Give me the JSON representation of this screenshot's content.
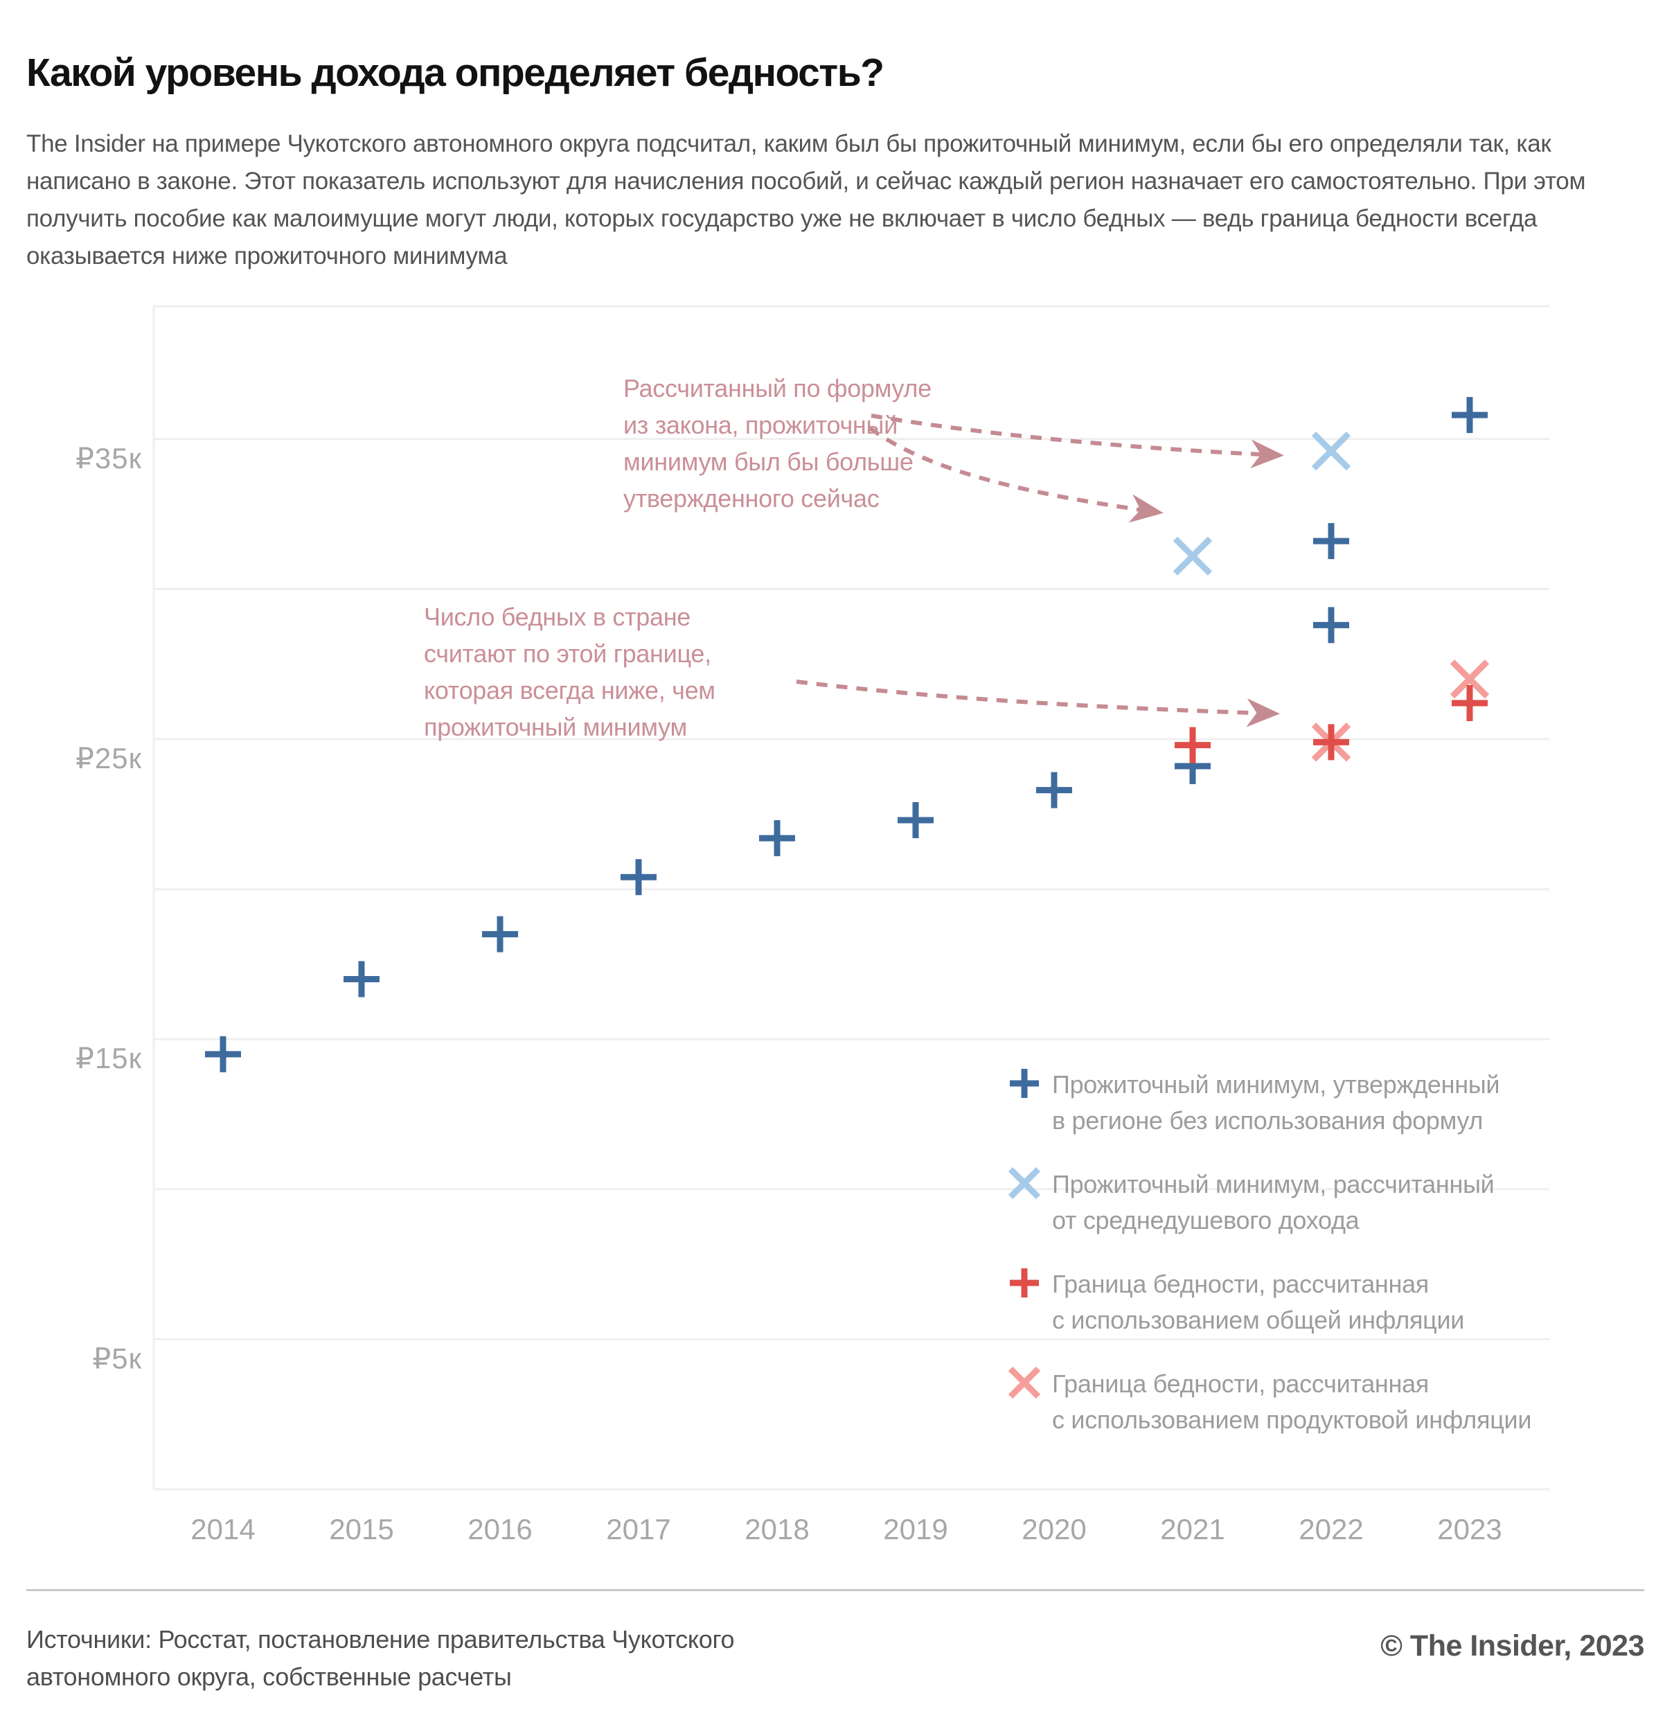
{
  "header": {
    "title": "Какой уровень дохода определяет бедность?",
    "subtitle": "The Insider на примере Чукотского автономного округа подсчитал, каким был бы прожиточный минимум, если бы его определяли так, как написано в законе. Этот показатель используют для начисления пособий, и сейчас каждый регион назначает его самостоятельно. При этом получить пособие как малоимущие могут люди, которых государство уже не включает в число бедных — ведь граница бедности всегда оказывается ниже прожиточного минимума"
  },
  "chart_data": {
    "type": "scatter",
    "unit": "thousand rubles per month",
    "x_categories": [
      "2014",
      "2015",
      "2016",
      "2017",
      "2018",
      "2019",
      "2020",
      "2021",
      "2022",
      "2023"
    ],
    "y_ticks": [
      {
        "value": 35,
        "label": "₽35к"
      },
      {
        "value": 25,
        "label": "₽25к"
      },
      {
        "value": 15,
        "label": "₽15к"
      },
      {
        "value": 5,
        "label": "₽5к"
      }
    ],
    "ylim": [
      0,
      40
    ],
    "grid_step": 5,
    "grid_on": true,
    "legend_position": "inside-right-bottom",
    "series": [
      {
        "id": "approved-minimum",
        "label": "Прожиточный минимум, утвержденный в регионе без использования формул",
        "marker": "plus",
        "color": "#3e6b9d",
        "points": [
          {
            "year": 2014,
            "value": 14.5
          },
          {
            "year": 2015,
            "value": 17.0
          },
          {
            "year": 2016,
            "value": 18.5
          },
          {
            "year": 2017,
            "value": 20.4
          },
          {
            "year": 2018,
            "value": 21.7
          },
          {
            "year": 2019,
            "value": 22.3
          },
          {
            "year": 2020,
            "value": 23.3
          },
          {
            "year": 2021,
            "value": 24.1
          },
          {
            "year": 2022,
            "value": 28.8
          },
          {
            "year": 2022,
            "value": 31.6
          },
          {
            "year": 2023,
            "value": 35.8
          }
        ]
      },
      {
        "id": "formula-minimum",
        "label": "Прожиточный минимум, рассчитанный от среднедушевого дохода",
        "marker": "x",
        "color": "#a6cbe9",
        "points": [
          {
            "year": 2021,
            "value": 31.1
          },
          {
            "year": 2022,
            "value": 34.6
          }
        ]
      },
      {
        "id": "poverty-line-food-inflation",
        "label": "Граница бедности, рассчитанная с использованием продуктовой инфляции",
        "marker": "x",
        "color": "#f59d99",
        "points": [
          {
            "year": 2022,
            "value": 24.9
          },
          {
            "year": 2023,
            "value": 27.0
          }
        ]
      },
      {
        "id": "poverty-line-general-inflation",
        "label": "Граница бедности, рассчитанная с использованием общей инфляции",
        "marker": "plus",
        "color": "#df4e49",
        "points": [
          {
            "year": 2021,
            "value": 24.8
          },
          {
            "year": 2022,
            "value": 24.9
          },
          {
            "year": 2023,
            "value": 26.2
          }
        ]
      }
    ],
    "colors": {
      "grid": "#efefef",
      "axis_label": "#a7a7a7",
      "annotation_text": "#ca8f97",
      "annotation_arrow": "#c58b92"
    }
  },
  "annotations": [
    {
      "id": "calc-minimum-note",
      "lines": [
        "Рассчитанный по формуле",
        "из закона, прожиточный",
        "минимум был бы больше",
        "утвержденного сейчас"
      ]
    },
    {
      "id": "poverty-line-note",
      "lines": [
        "Число бедных в стране",
        "считают по этой границе,",
        "которая всегда ниже, чем",
        "прожиточный минимум"
      ]
    }
  ],
  "legend": {
    "items": [
      {
        "marker": "plus",
        "color": "#3e6b9d",
        "lines": [
          "Прожиточный минимум, утвержденный",
          "в регионе без использования формул"
        ]
      },
      {
        "marker": "x",
        "color": "#a6cbe9",
        "lines": [
          "Прожиточный минимум, рассчитанный",
          "от среднедушевого дохода"
        ]
      },
      {
        "marker": "plus",
        "color": "#df4e49",
        "lines": [
          "Граница бедности, рассчитанная",
          "с использованием общей инфляции"
        ]
      },
      {
        "marker": "x",
        "color": "#f59d99",
        "lines": [
          "Граница бедности, рассчитанная",
          "с использованием продуктовой инфляции"
        ]
      }
    ]
  },
  "footer": {
    "sources": "Источники: Росстат, постановление правительства Чукотского автономного округа, собственные расчеты",
    "credit": "© The Insider, 2023"
  }
}
